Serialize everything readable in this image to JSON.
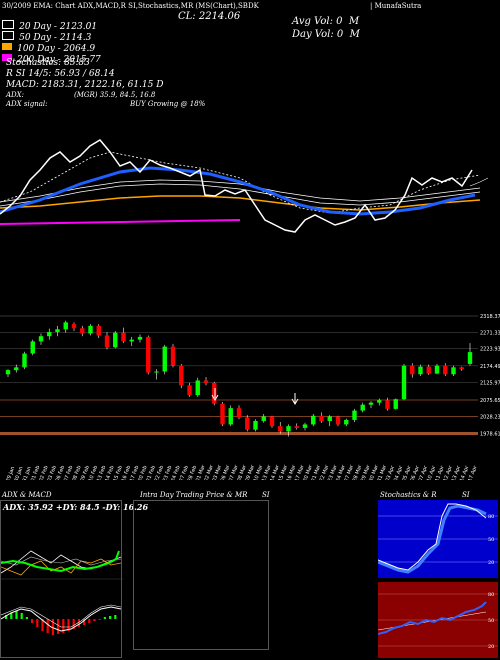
{
  "header": {
    "title_line": "30/2009 EMA: Chart ADX,MACD,R SI,Stochastics,MR (MS(Chart),SBDK",
    "title_right": "| MunafaSutra",
    "close_label": "CL: 2214.06",
    "avg_vol_label": "Avg Vol: 0",
    "avg_vol_unit": "M",
    "day_vol_label": "Day Vol: 0",
    "day_vol_unit": "M"
  },
  "indicators": [
    {
      "text": "20  Day - 2123.01",
      "swatch": "#ffffff"
    },
    {
      "text": "50  Day - 2114.3",
      "swatch": "#ffffff"
    },
    {
      "text": "100  Day - 2064.9",
      "swatch": "#ffa500"
    },
    {
      "text": "200  Day - 2015.77",
      "swatch": "#ff00ff"
    }
  ],
  "stats": [
    "Stochastics: 85.83",
    "R                    SI 14/5: 56.93 / 68.14",
    "MACD: 2183.31,  2122.16,  61.15 D"
  ],
  "adx": {
    "line1_left": "ADX:",
    "line1_right": "(MGR) 35.9, 84.5, 16.8",
    "line2_left": "ADX signal:",
    "line2_right": "BUY Growing @ 18%"
  },
  "price_axis": [
    "2318.37",
    "2271.33",
    "2223.93",
    "2174.49",
    "2125.97",
    "2075.65",
    "2028.23",
    "1978.61"
  ],
  "dates": [
    "29 Jan",
    "30 Jan",
    "31 Jan",
    "01 Feb",
    "02 Feb",
    "03 Feb",
    "06 Feb",
    "07 Feb",
    "08 Feb",
    "09 Feb",
    "10 Feb",
    "13 Feb",
    "14 Feb",
    "15 Feb",
    "16 Feb",
    "17 Feb",
    "20 Feb",
    "21 Feb",
    "22 Feb",
    "23 Feb",
    "24 Feb",
    "27 Feb",
    "28 Feb",
    "01 Mar",
    "02 Mar",
    "03 Mar",
    "06 Mar",
    "07 Mar",
    "08 Mar",
    "09 Mar",
    "10 Mar",
    "13 Mar",
    "14 Mar",
    "15 Mar",
    "16 Mar",
    "17 Mar",
    "20 Mar",
    "21 Mar",
    "22 Mar",
    "23 Mar",
    "24 Mar",
    "27 Mar",
    "28 Mar",
    "29 Mar",
    "30 Mar",
    "31 Mar",
    "03 Apr",
    "04 Apr",
    "05 Apr",
    "06 Apr",
    "07 Apr",
    "10 Apr",
    "11 Apr",
    "12 Apr",
    "13 Apr",
    "14 Apr",
    "17 Apr"
  ],
  "panels": {
    "adx_title": "ADX  & MACD",
    "adx_readout": "ADX: 35.92  +DY: 84.5  -DY: 16.26",
    "intraday_title": "Intra  Day Trading Price  & MR",
    "intraday_right": "SI",
    "stoch_title": "Stochastics  & R",
    "stoch_right": "SI",
    "stoch_ticks": [
      "80",
      "50",
      "20"
    ],
    "rsi_ticks": [
      "80",
      "50",
      "20"
    ]
  },
  "chart_data": {
    "type": "candlestick",
    "price_range": [
      1960,
      2330
    ],
    "candles": [
      {
        "o": 2150,
        "h": 2165,
        "l": 2142,
        "c": 2162
      },
      {
        "o": 2162,
        "h": 2178,
        "l": 2155,
        "c": 2170
      },
      {
        "o": 2170,
        "h": 2215,
        "l": 2165,
        "c": 2210
      },
      {
        "o": 2210,
        "h": 2250,
        "l": 2205,
        "c": 2245
      },
      {
        "o": 2245,
        "h": 2268,
        "l": 2235,
        "c": 2260
      },
      {
        "o": 2260,
        "h": 2282,
        "l": 2250,
        "c": 2272
      },
      {
        "o": 2272,
        "h": 2290,
        "l": 2260,
        "c": 2280
      },
      {
        "o": 2280,
        "h": 2305,
        "l": 2270,
        "c": 2300
      },
      {
        "o": 2295,
        "h": 2300,
        "l": 2275,
        "c": 2283
      },
      {
        "o": 2283,
        "h": 2290,
        "l": 2260,
        "c": 2268
      },
      {
        "o": 2268,
        "h": 2295,
        "l": 2262,
        "c": 2290
      },
      {
        "o": 2290,
        "h": 2295,
        "l": 2255,
        "c": 2262
      },
      {
        "o": 2262,
        "h": 2272,
        "l": 2222,
        "c": 2228
      },
      {
        "o": 2228,
        "h": 2275,
        "l": 2225,
        "c": 2270
      },
      {
        "o": 2270,
        "h": 2285,
        "l": 2240,
        "c": 2245
      },
      {
        "o": 2245,
        "h": 2258,
        "l": 2232,
        "c": 2250
      },
      {
        "o": 2250,
        "h": 2265,
        "l": 2242,
        "c": 2258
      },
      {
        "o": 2258,
        "h": 2262,
        "l": 2150,
        "c": 2155
      },
      {
        "o": 2155,
        "h": 2165,
        "l": 2135,
        "c": 2158
      },
      {
        "o": 2158,
        "h": 2235,
        "l": 2150,
        "c": 2230
      },
      {
        "o": 2230,
        "h": 2238,
        "l": 2170,
        "c": 2175
      },
      {
        "o": 2175,
        "h": 2180,
        "l": 2110,
        "c": 2118
      },
      {
        "o": 2118,
        "h": 2125,
        "l": 2085,
        "c": 2090
      },
      {
        "o": 2090,
        "h": 2140,
        "l": 2085,
        "c": 2132
      },
      {
        "o": 2132,
        "h": 2142,
        "l": 2118,
        "c": 2125
      },
      {
        "o": 2125,
        "h": 2128,
        "l": 2060,
        "c": 2065
      },
      {
        "o": 2065,
        "h": 2070,
        "l": 2000,
        "c": 2005
      },
      {
        "o": 2005,
        "h": 2060,
        "l": 2000,
        "c": 2052
      },
      {
        "o": 2052,
        "h": 2060,
        "l": 2020,
        "c": 2025
      },
      {
        "o": 2025,
        "h": 2032,
        "l": 1985,
        "c": 1990
      },
      {
        "o": 1990,
        "h": 2020,
        "l": 1985,
        "c": 2015
      },
      {
        "o": 2015,
        "h": 2035,
        "l": 2010,
        "c": 2028
      },
      {
        "o": 2028,
        "h": 2030,
        "l": 1995,
        "c": 2000
      },
      {
        "o": 2000,
        "h": 2012,
        "l": 1978,
        "c": 1985
      },
      {
        "o": 1985,
        "h": 2005,
        "l": 1970,
        "c": 2000
      },
      {
        "o": 2000,
        "h": 2008,
        "l": 1990,
        "c": 1995
      },
      {
        "o": 1995,
        "h": 2010,
        "l": 1988,
        "c": 2005
      },
      {
        "o": 2005,
        "h": 2035,
        "l": 2000,
        "c": 2030
      },
      {
        "o": 2030,
        "h": 2040,
        "l": 2010,
        "c": 2015
      },
      {
        "o": 2015,
        "h": 2032,
        "l": 2000,
        "c": 2028
      },
      {
        "o": 2028,
        "h": 2030,
        "l": 2000,
        "c": 2005
      },
      {
        "o": 2005,
        "h": 2022,
        "l": 2000,
        "c": 2018
      },
      {
        "o": 2018,
        "h": 2050,
        "l": 2012,
        "c": 2045
      },
      {
        "o": 2045,
        "h": 2068,
        "l": 2040,
        "c": 2062
      },
      {
        "o": 2062,
        "h": 2072,
        "l": 2052,
        "c": 2068
      },
      {
        "o": 2068,
        "h": 2080,
        "l": 2060,
        "c": 2075
      },
      {
        "o": 2075,
        "h": 2082,
        "l": 2045,
        "c": 2050
      },
      {
        "o": 2050,
        "h": 2080,
        "l": 2048,
        "c": 2078
      },
      {
        "o": 2078,
        "h": 2180,
        "l": 2075,
        "c": 2175
      },
      {
        "o": 2175,
        "h": 2182,
        "l": 2140,
        "c": 2150
      },
      {
        "o": 2150,
        "h": 2178,
        "l": 2145,
        "c": 2172
      },
      {
        "o": 2172,
        "h": 2178,
        "l": 2148,
        "c": 2152
      },
      {
        "o": 2152,
        "h": 2180,
        "l": 2150,
        "c": 2175
      },
      {
        "o": 2175,
        "h": 2182,
        "l": 2145,
        "c": 2150
      },
      {
        "o": 2150,
        "h": 2175,
        "l": 2145,
        "c": 2170
      },
      {
        "o": 2170,
        "h": 2172,
        "l": 2160,
        "c": 2165
      },
      {
        "o": 2180,
        "h": 2240,
        "l": 2175,
        "c": 2214
      }
    ]
  }
}
